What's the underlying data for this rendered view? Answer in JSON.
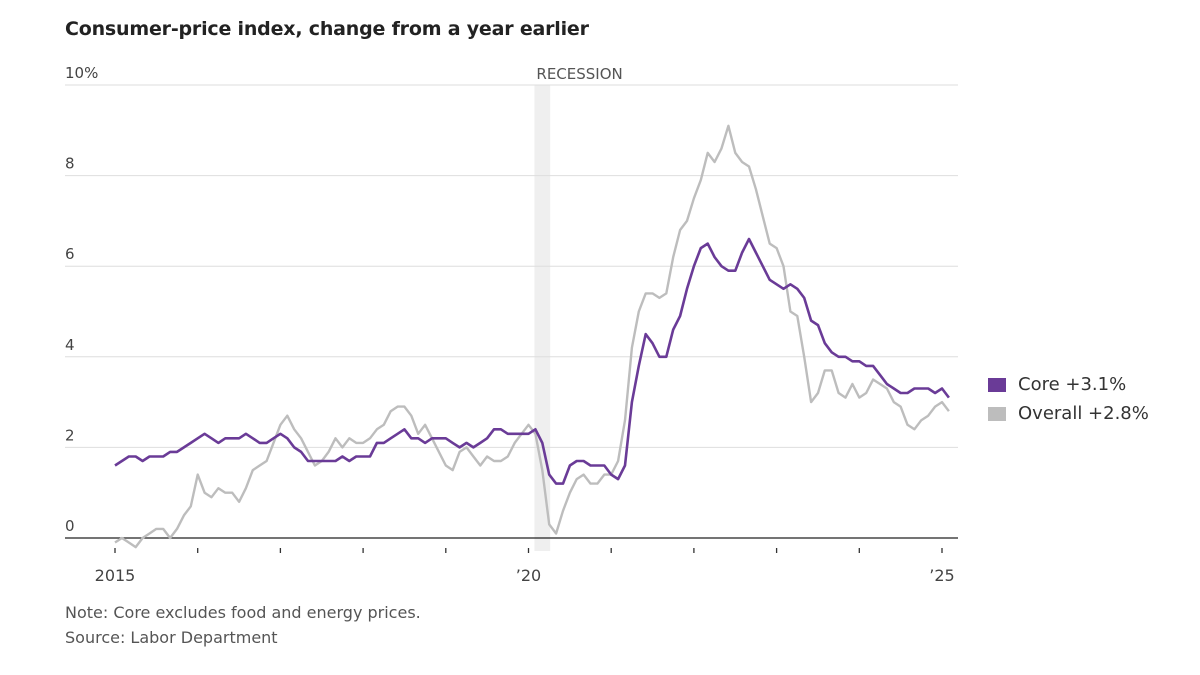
{
  "chart_data": {
    "type": "line",
    "title": "Consumer-price index, change from a year earlier",
    "xlabel": "",
    "ylabel": "",
    "ylim": [
      0,
      10
    ],
    "y_ticks": [
      "0",
      "2",
      "4",
      "6",
      "8",
      "10%"
    ],
    "y_tick_values": [
      0,
      2,
      4,
      6,
      8,
      10
    ],
    "x_range": [
      "2015-01",
      "2025-02"
    ],
    "x_ticks": [
      "2015",
      "",
      "",
      "",
      "",
      "’20",
      "",
      "",
      "",
      "",
      "’25"
    ],
    "x_tick_years": [
      2015,
      2016,
      2017,
      2018,
      2019,
      2020,
      2021,
      2022,
      2023,
      2024,
      2025
    ],
    "grid": true,
    "legend_position": "right",
    "annotation": {
      "label": "RECESSION",
      "start": "2020-02",
      "end": "2020-04"
    },
    "start_month": "2015-01",
    "series": [
      {
        "name": "Core",
        "legend_label": "Core +3.1%",
        "color": "#6a3b97",
        "values": [
          1.6,
          1.7,
          1.8,
          1.8,
          1.7,
          1.8,
          1.8,
          1.8,
          1.9,
          1.9,
          2.0,
          2.1,
          2.2,
          2.3,
          2.2,
          2.1,
          2.2,
          2.2,
          2.2,
          2.3,
          2.2,
          2.1,
          2.1,
          2.2,
          2.3,
          2.2,
          2.0,
          1.9,
          1.7,
          1.7,
          1.7,
          1.7,
          1.7,
          1.8,
          1.7,
          1.8,
          1.8,
          1.8,
          2.1,
          2.1,
          2.2,
          2.3,
          2.4,
          2.2,
          2.2,
          2.1,
          2.2,
          2.2,
          2.2,
          2.1,
          2.0,
          2.1,
          2.0,
          2.1,
          2.2,
          2.4,
          2.4,
          2.3,
          2.3,
          2.3,
          2.3,
          2.4,
          2.1,
          1.4,
          1.2,
          1.2,
          1.6,
          1.7,
          1.7,
          1.6,
          1.6,
          1.6,
          1.4,
          1.3,
          1.6,
          3.0,
          3.8,
          4.5,
          4.3,
          4.0,
          4.0,
          4.6,
          4.9,
          5.5,
          6.0,
          6.4,
          6.5,
          6.2,
          6.0,
          5.9,
          5.9,
          6.3,
          6.6,
          6.3,
          6.0,
          5.7,
          5.6,
          5.5,
          5.6,
          5.5,
          5.3,
          4.8,
          4.7,
          4.3,
          4.1,
          4.0,
          4.0,
          3.9,
          3.9,
          3.8,
          3.8,
          3.6,
          3.4,
          3.3,
          3.2,
          3.2,
          3.3,
          3.3,
          3.3,
          3.2,
          3.3,
          3.1
        ]
      },
      {
        "name": "Overall",
        "legend_label": "Overall +2.8%",
        "color": "#bdbdbd",
        "values": [
          -0.1,
          0.0,
          -0.1,
          -0.2,
          0.0,
          0.1,
          0.2,
          0.2,
          0.0,
          0.2,
          0.5,
          0.7,
          1.4,
          1.0,
          0.9,
          1.1,
          1.0,
          1.0,
          0.8,
          1.1,
          1.5,
          1.6,
          1.7,
          2.1,
          2.5,
          2.7,
          2.4,
          2.2,
          1.9,
          1.6,
          1.7,
          1.9,
          2.2,
          2.0,
          2.2,
          2.1,
          2.1,
          2.2,
          2.4,
          2.5,
          2.8,
          2.9,
          2.9,
          2.7,
          2.3,
          2.5,
          2.2,
          1.9,
          1.6,
          1.5,
          1.9,
          2.0,
          1.8,
          1.6,
          1.8,
          1.7,
          1.7,
          1.8,
          2.1,
          2.3,
          2.5,
          2.3,
          1.5,
          0.3,
          0.1,
          0.6,
          1.0,
          1.3,
          1.4,
          1.2,
          1.2,
          1.4,
          1.4,
          1.7,
          2.6,
          4.2,
          5.0,
          5.4,
          5.4,
          5.3,
          5.4,
          6.2,
          6.8,
          7.0,
          7.5,
          7.9,
          8.5,
          8.3,
          8.6,
          9.1,
          8.5,
          8.3,
          8.2,
          7.7,
          7.1,
          6.5,
          6.4,
          6.0,
          5.0,
          4.9,
          4.0,
          3.0,
          3.2,
          3.7,
          3.7,
          3.2,
          3.1,
          3.4,
          3.1,
          3.2,
          3.5,
          3.4,
          3.3,
          3.0,
          2.9,
          2.5,
          2.4,
          2.6,
          2.7,
          2.9,
          3.0,
          2.8
        ]
      }
    ]
  },
  "notes": {
    "note": "Note: Core excludes food and energy prices.",
    "source": "Source: Labor Department"
  }
}
